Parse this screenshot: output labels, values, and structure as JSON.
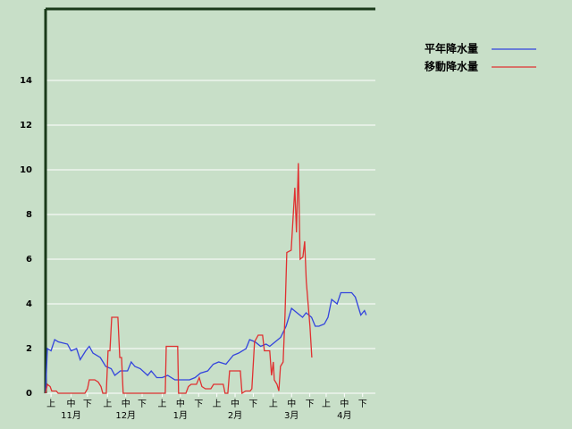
{
  "chart_data": {
    "type": "line",
    "xlim": [
      0,
      181
    ],
    "ylim": [
      0,
      17.2
    ],
    "yticks": [
      0,
      2,
      4,
      6,
      8,
      10,
      12,
      14
    ],
    "grid": true,
    "xticks": [
      {
        "value": 3,
        "label": "上"
      },
      {
        "value": 14,
        "label": "中"
      },
      {
        "value": 23,
        "label": "下"
      },
      {
        "value": 34,
        "label": "上"
      },
      {
        "value": 44,
        "label": "中"
      },
      {
        "value": 53,
        "label": "下"
      },
      {
        "value": 64,
        "label": "上"
      },
      {
        "value": 74,
        "label": "中"
      },
      {
        "value": 84,
        "label": "下"
      },
      {
        "value": 94,
        "label": "上"
      },
      {
        "value": 104,
        "label": "中"
      },
      {
        "value": 114,
        "label": "下"
      },
      {
        "value": 125,
        "label": "上"
      },
      {
        "value": 135,
        "label": "中"
      },
      {
        "value": 145,
        "label": "下"
      },
      {
        "value": 154,
        "label": "上"
      },
      {
        "value": 164,
        "label": "中"
      },
      {
        "value": 174,
        "label": "下"
      }
    ],
    "month_labels": [
      {
        "value": 14,
        "label": "11月"
      },
      {
        "value": 44,
        "label": "12月"
      },
      {
        "value": 74,
        "label": "1月"
      },
      {
        "value": 104,
        "label": "2月"
      },
      {
        "value": 135,
        "label": "3月"
      },
      {
        "value": 164,
        "label": "4月"
      }
    ],
    "legend": "right-top",
    "series": [
      {
        "name": "平年降水量",
        "color": "#3344dd",
        "x": [
          0,
          1,
          3,
          5,
          7,
          12,
          14,
          17,
          19,
          22,
          24,
          26,
          30,
          33,
          36,
          38,
          41,
          45,
          47,
          49,
          52,
          56,
          58,
          61,
          64,
          67,
          71,
          75,
          79,
          82,
          85,
          89,
          92,
          95,
          99,
          101,
          103,
          106,
          110,
          112,
          115,
          118,
          121,
          123,
          126,
          129,
          132,
          135,
          138,
          141,
          143,
          146,
          148,
          150,
          153,
          155,
          157,
          160,
          162,
          165,
          168,
          170,
          173,
          175,
          176
        ],
        "values": [
          0,
          2,
          1.9,
          2.4,
          2.3,
          2.2,
          1.9,
          2.0,
          1.5,
          1.9,
          2.1,
          1.8,
          1.6,
          1.2,
          1.1,
          0.8,
          1.0,
          1.0,
          1.4,
          1.2,
          1.1,
          0.8,
          1.0,
          0.7,
          0.7,
          0.8,
          0.6,
          0.6,
          0.6,
          0.7,
          0.9,
          1.0,
          1.3,
          1.4,
          1.3,
          1.5,
          1.7,
          1.8,
          2.0,
          2.4,
          2.3,
          2.1,
          2.2,
          2.1,
          2.3,
          2.5,
          3.0,
          3.8,
          3.6,
          3.4,
          3.6,
          3.4,
          3.0,
          3.0,
          3.1,
          3.4,
          4.2,
          4.0,
          4.5,
          4.5,
          4.5,
          4.3,
          3.5,
          3.7,
          3.5
        ]
      },
      {
        "name": "移動降水量",
        "color": "#e03030",
        "x": [
          0,
          1,
          2.5,
          3.4,
          5.9,
          6.9,
          21.6,
          23,
          24,
          27,
          28.9,
          30.4,
          31.4,
          33.3,
          34.3,
          35.3,
          36.3,
          39.7,
          40.7,
          41.7,
          42.6,
          65.7,
          66.2,
          72.5,
          73,
          77,
          78.4,
          79.9,
          82.8,
          84.3,
          85.8,
          87.7,
          90.7,
          92.2,
          97.5,
          98.5,
          100,
          101,
          106.9,
          107.8,
          109.8,
          112.3,
          113.2,
          114.7,
          116.7,
          119.1,
          120.1,
          123,
          124,
          125,
          125.5,
          127,
          128,
          128.9,
          130.4,
          131.4,
          132.4,
          134.8,
          136.8,
          137.7,
          138.7,
          139.7,
          141.2,
          142.2,
          143.1,
          145.1,
          146.1
        ],
        "values": [
          0,
          0.4,
          0.3,
          0.1,
          0.1,
          0,
          0,
          0.2,
          0.6,
          0.6,
          0.5,
          0.3,
          0,
          0,
          1.9,
          1.9,
          3.4,
          3.4,
          1.6,
          1.6,
          0,
          0,
          2.1,
          2.1,
          0,
          0,
          0.3,
          0.4,
          0.4,
          0.7,
          0.3,
          0.2,
          0.2,
          0.4,
          0.4,
          0,
          0,
          1.0,
          1.0,
          0,
          0.1,
          0.1,
          0.2,
          2.3,
          2.6,
          2.6,
          1.9,
          1.9,
          0.8,
          1.4,
          0.6,
          0.4,
          0.1,
          1.2,
          1.4,
          3.5,
          6.3,
          6.4,
          9.2,
          7.2,
          10.3,
          6.0,
          6.1,
          6.8,
          5.0,
          3.0,
          1.6
        ]
      }
    ]
  }
}
